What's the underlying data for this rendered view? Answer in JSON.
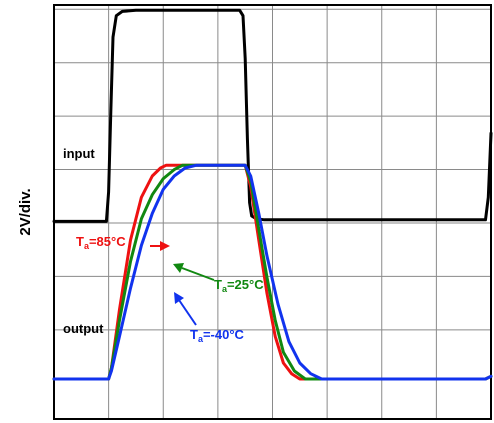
{
  "chart_data": {
    "type": "line",
    "title": "",
    "xlabel": "",
    "ylabel": "2V/div.",
    "xlim": [
      0,
      8
    ],
    "ylim": [
      0,
      8
    ],
    "x_unit": "div",
    "y_unit": "div",
    "grid": true,
    "legend": "none",
    "annotations": {
      "input": "input",
      "output": "output",
      "t85": {
        "prefix": "T",
        "sub": "a",
        "suffix": "=85°C"
      },
      "t25": {
        "prefix": "T",
        "sub": "a",
        "suffix": "=25°C"
      },
      "tm40": {
        "prefix": "T",
        "sub": "a",
        "suffix": "=-40°C"
      }
    },
    "series": [
      {
        "id": "input",
        "color": "#000000",
        "x": [
          0,
          0.96,
          1.0,
          1.04,
          1.08,
          1.14,
          1.25,
          1.5,
          3.4,
          3.46,
          3.5,
          3.54,
          3.58,
          3.62,
          3.7,
          3.85,
          7.9,
          7.95,
          8.0
        ],
        "y": [
          2.95,
          2.95,
          3.5,
          5.0,
          6.4,
          6.8,
          6.88,
          6.9,
          6.9,
          6.8,
          6.0,
          4.5,
          3.3,
          3.05,
          3.0,
          2.98,
          2.98,
          3.4,
          4.6
        ]
      },
      {
        "id": "T85",
        "color": "#ee1111",
        "x": [
          0,
          1.0,
          1.05,
          1.2,
          1.4,
          1.6,
          1.8,
          1.95,
          2.05,
          3.5,
          3.6,
          3.75,
          3.9,
          4.05,
          4.2,
          4.35,
          4.5,
          4.6,
          7.9,
          8.0
        ],
        "y": [
          0.0,
          0.0,
          0.2,
          1.3,
          2.6,
          3.4,
          3.8,
          3.95,
          4.0,
          4.0,
          3.6,
          2.6,
          1.6,
          0.8,
          0.3,
          0.1,
          0.0,
          0.0,
          0.0,
          0.05
        ]
      },
      {
        "id": "T25",
        "color": "#118811",
        "x": [
          0,
          1.0,
          1.05,
          1.2,
          1.4,
          1.6,
          1.8,
          2.0,
          2.2,
          2.35,
          3.5,
          3.6,
          3.75,
          3.9,
          4.05,
          4.2,
          4.4,
          4.6,
          4.75,
          7.9,
          8.0
        ],
        "y": [
          0.0,
          0.0,
          0.2,
          1.1,
          2.2,
          3.0,
          3.45,
          3.75,
          3.92,
          4.0,
          4.0,
          3.7,
          2.8,
          1.9,
          1.1,
          0.5,
          0.15,
          0.0,
          0.0,
          0.0,
          0.05
        ]
      },
      {
        "id": "T-40",
        "color": "#1133ee",
        "x": [
          0,
          1.0,
          1.05,
          1.2,
          1.4,
          1.6,
          1.8,
          2.0,
          2.2,
          2.4,
          2.6,
          3.5,
          3.6,
          3.75,
          3.9,
          4.1,
          4.3,
          4.5,
          4.7,
          4.9,
          5.0,
          7.9,
          8.0
        ],
        "y": [
          0.0,
          0.0,
          0.15,
          0.8,
          1.7,
          2.5,
          3.1,
          3.55,
          3.8,
          3.95,
          4.0,
          4.0,
          3.8,
          3.1,
          2.3,
          1.4,
          0.7,
          0.3,
          0.1,
          0.0,
          0.0,
          0.0,
          0.05
        ]
      }
    ]
  }
}
